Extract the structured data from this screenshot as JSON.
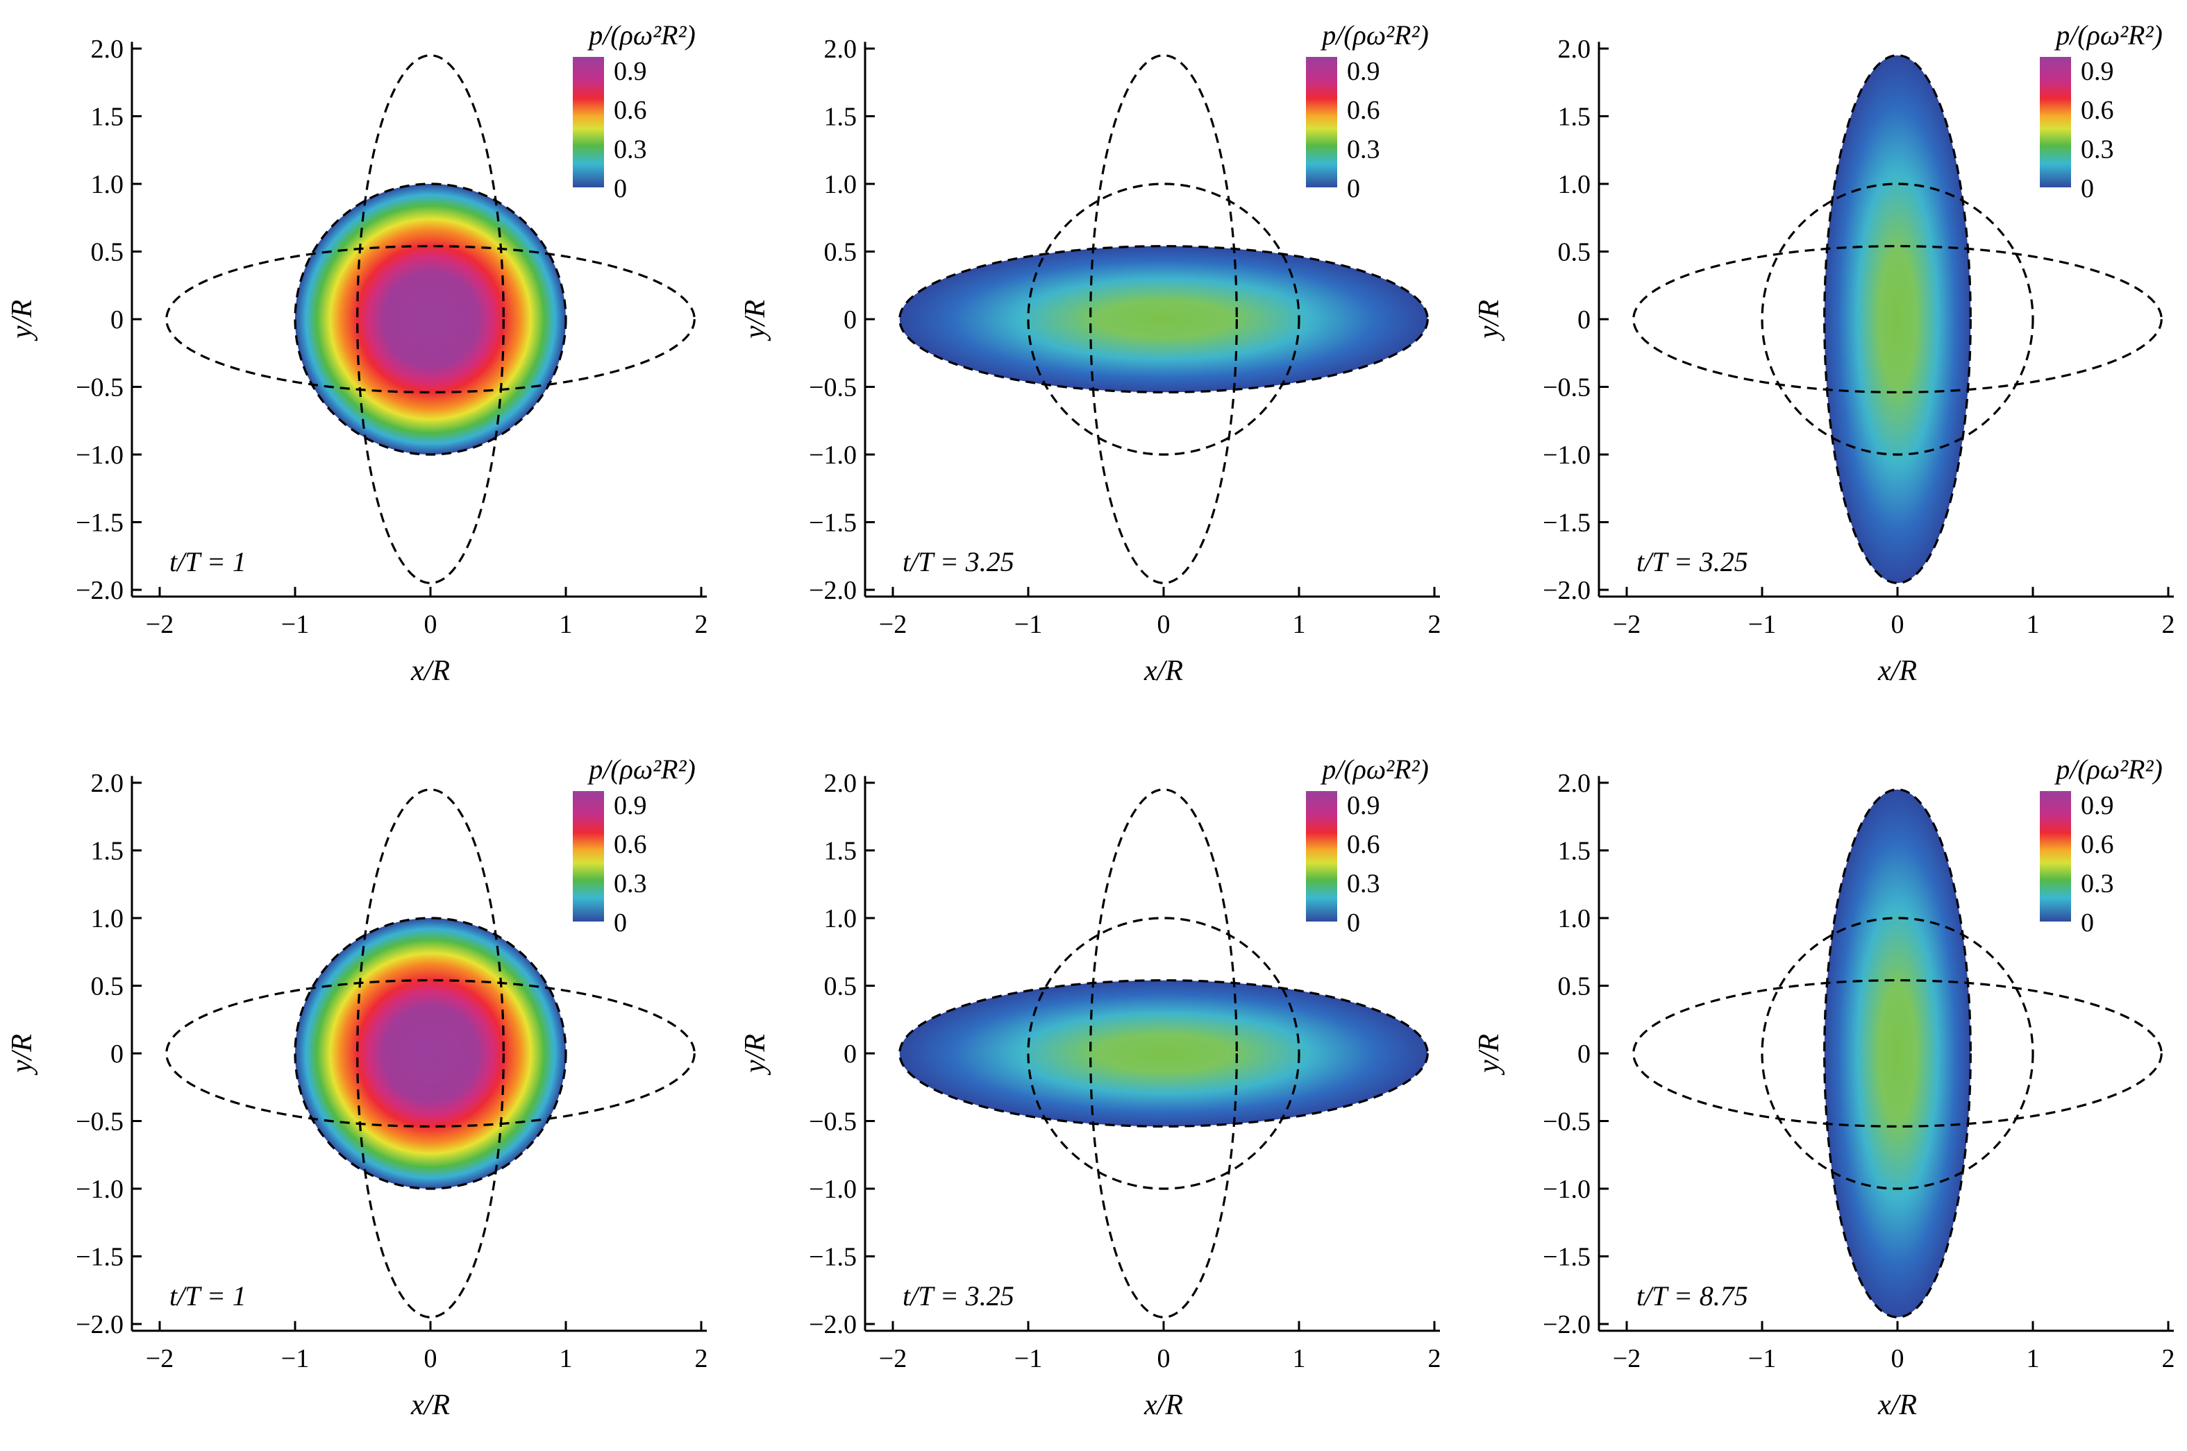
{
  "figure": {
    "layout": "2x3 grid of pressure-field panels",
    "colors": {
      "axis": "#000000",
      "dashed_outline": "#000000",
      "background": "#ffffff"
    }
  },
  "chart_data": [
    {
      "type": "heatmap",
      "panel": "top-left",
      "annotation": "t/T = 1",
      "xlabel": "x/R",
      "ylabel": "y/R",
      "xlim": [
        -2,
        2
      ],
      "ylim": [
        -2.05,
        2.05
      ],
      "xticks": [
        "−2",
        "−1",
        "0",
        "1",
        "2"
      ],
      "yticks": [
        "−2.0",
        "−1.5",
        "−1.0",
        "−0.5",
        "0",
        "0.5",
        "1.0",
        "1.5",
        "2.0"
      ],
      "colorbar": {
        "title": "p/(ρω²R²)",
        "ticks": [
          "0.9",
          "0.6",
          "0.3",
          "0"
        ],
        "range": [
          0,
          1
        ]
      },
      "field": {
        "shape": "ellipse",
        "semi_axis_x": 1.0,
        "semi_axis_y": 1.0,
        "peak_pressure": 0.9
      },
      "dashed_ellipses": [
        {
          "semi_axis_x": 1.0,
          "semi_axis_y": 1.0
        },
        {
          "semi_axis_x": 1.95,
          "semi_axis_y": 0.54
        },
        {
          "semi_axis_x": 0.54,
          "semi_axis_y": 1.95
        }
      ]
    },
    {
      "type": "heatmap",
      "panel": "top-middle",
      "annotation": "t/T = 3.25",
      "xlabel": "x/R",
      "ylabel": "y/R",
      "xlim": [
        -2,
        2
      ],
      "ylim": [
        -2.05,
        2.05
      ],
      "xticks": [
        "−2",
        "−1",
        "0",
        "1",
        "2"
      ],
      "yticks": [
        "−2.0",
        "−1.5",
        "−1.0",
        "−0.5",
        "0",
        "0.5",
        "1.0",
        "1.5",
        "2.0"
      ],
      "colorbar": {
        "title": "p/(ρω²R²)",
        "ticks": [
          "0.9",
          "0.6",
          "0.3",
          "0"
        ],
        "range": [
          0,
          1
        ]
      },
      "field": {
        "shape": "ellipse",
        "semi_axis_x": 1.95,
        "semi_axis_y": 0.54,
        "peak_pressure": 0.33
      },
      "dashed_ellipses": [
        {
          "semi_axis_x": 1.0,
          "semi_axis_y": 1.0
        },
        {
          "semi_axis_x": 1.95,
          "semi_axis_y": 0.54
        },
        {
          "semi_axis_x": 0.54,
          "semi_axis_y": 1.95
        }
      ]
    },
    {
      "type": "heatmap",
      "panel": "top-right",
      "annotation": "t/T = 3.25",
      "xlabel": "x/R",
      "ylabel": "y/R",
      "xlim": [
        -2,
        2
      ],
      "ylim": [
        -2.05,
        2.05
      ],
      "xticks": [
        "−2",
        "−1",
        "0",
        "1",
        "2"
      ],
      "yticks": [
        "−2.0",
        "−1.5",
        "−1.0",
        "−0.5",
        "0",
        "0.5",
        "1.0",
        "1.5",
        "2.0"
      ],
      "colorbar": {
        "title": "p/(ρω²R²)",
        "ticks": [
          "0.9",
          "0.6",
          "0.3",
          "0"
        ],
        "range": [
          0,
          1
        ]
      },
      "field": {
        "shape": "ellipse",
        "semi_axis_x": 0.54,
        "semi_axis_y": 1.95,
        "peak_pressure": 0.3
      },
      "dashed_ellipses": [
        {
          "semi_axis_x": 1.0,
          "semi_axis_y": 1.0
        },
        {
          "semi_axis_x": 1.95,
          "semi_axis_y": 0.54
        },
        {
          "semi_axis_x": 0.54,
          "semi_axis_y": 1.95
        }
      ]
    },
    {
      "type": "heatmap",
      "panel": "bottom-left",
      "annotation": "t/T = 1",
      "xlabel": "x/R",
      "ylabel": "y/R",
      "xlim": [
        -2,
        2
      ],
      "ylim": [
        -2.05,
        2.05
      ],
      "xticks": [
        "−2",
        "−1",
        "0",
        "1",
        "2"
      ],
      "yticks": [
        "−2.0",
        "−1.5",
        "−1.0",
        "−0.5",
        "0",
        "0.5",
        "1.0",
        "1.5",
        "2.0"
      ],
      "colorbar": {
        "title": "p/(ρω²R²)",
        "ticks": [
          "0.9",
          "0.6",
          "0.3",
          "0"
        ],
        "range": [
          0,
          1
        ]
      },
      "field": {
        "shape": "ellipse",
        "semi_axis_x": 1.0,
        "semi_axis_y": 1.0,
        "peak_pressure": 0.9
      },
      "dashed_ellipses": [
        {
          "semi_axis_x": 1.0,
          "semi_axis_y": 1.0
        },
        {
          "semi_axis_x": 1.95,
          "semi_axis_y": 0.54
        },
        {
          "semi_axis_x": 0.54,
          "semi_axis_y": 1.95
        }
      ]
    },
    {
      "type": "heatmap",
      "panel": "bottom-middle",
      "annotation": "t/T = 3.25",
      "xlabel": "x/R",
      "ylabel": "y/R",
      "xlim": [
        -2,
        2
      ],
      "ylim": [
        -2.05,
        2.05
      ],
      "xticks": [
        "−2",
        "−1",
        "0",
        "1",
        "2"
      ],
      "yticks": [
        "−2.0",
        "−1.5",
        "−1.0",
        "−0.5",
        "0",
        "0.5",
        "1.0",
        "1.5",
        "2.0"
      ],
      "colorbar": {
        "title": "p/(ρω²R²)",
        "ticks": [
          "0.9",
          "0.6",
          "0.3",
          "0"
        ],
        "range": [
          0,
          1
        ]
      },
      "field": {
        "shape": "ellipse",
        "semi_axis_x": 1.95,
        "semi_axis_y": 0.54,
        "peak_pressure": 0.32
      },
      "dashed_ellipses": [
        {
          "semi_axis_x": 1.0,
          "semi_axis_y": 1.0
        },
        {
          "semi_axis_x": 1.95,
          "semi_axis_y": 0.54
        },
        {
          "semi_axis_x": 0.54,
          "semi_axis_y": 1.95
        }
      ]
    },
    {
      "type": "heatmap",
      "panel": "bottom-right",
      "annotation": "t/T = 8.75",
      "xlabel": "x/R",
      "ylabel": "y/R",
      "xlim": [
        -2,
        2
      ],
      "ylim": [
        -2.05,
        2.05
      ],
      "xticks": [
        "−2",
        "−1",
        "0",
        "1",
        "2"
      ],
      "yticks": [
        "−2.0",
        "−1.5",
        "−1.0",
        "−0.5",
        "0",
        "0.5",
        "1.0",
        "1.5",
        "2.0"
      ],
      "colorbar": {
        "title": "p/(ρω²R²)",
        "ticks": [
          "0.9",
          "0.6",
          "0.3",
          "0"
        ],
        "range": [
          0,
          1
        ]
      },
      "field": {
        "shape": "ellipse",
        "semi_axis_x": 0.54,
        "semi_axis_y": 1.95,
        "peak_pressure": 0.3
      },
      "dashed_ellipses": [
        {
          "semi_axis_x": 1.0,
          "semi_axis_y": 1.0
        },
        {
          "semi_axis_x": 1.95,
          "semi_axis_y": 0.54
        },
        {
          "semi_axis_x": 0.54,
          "semi_axis_y": 1.95
        }
      ]
    }
  ]
}
